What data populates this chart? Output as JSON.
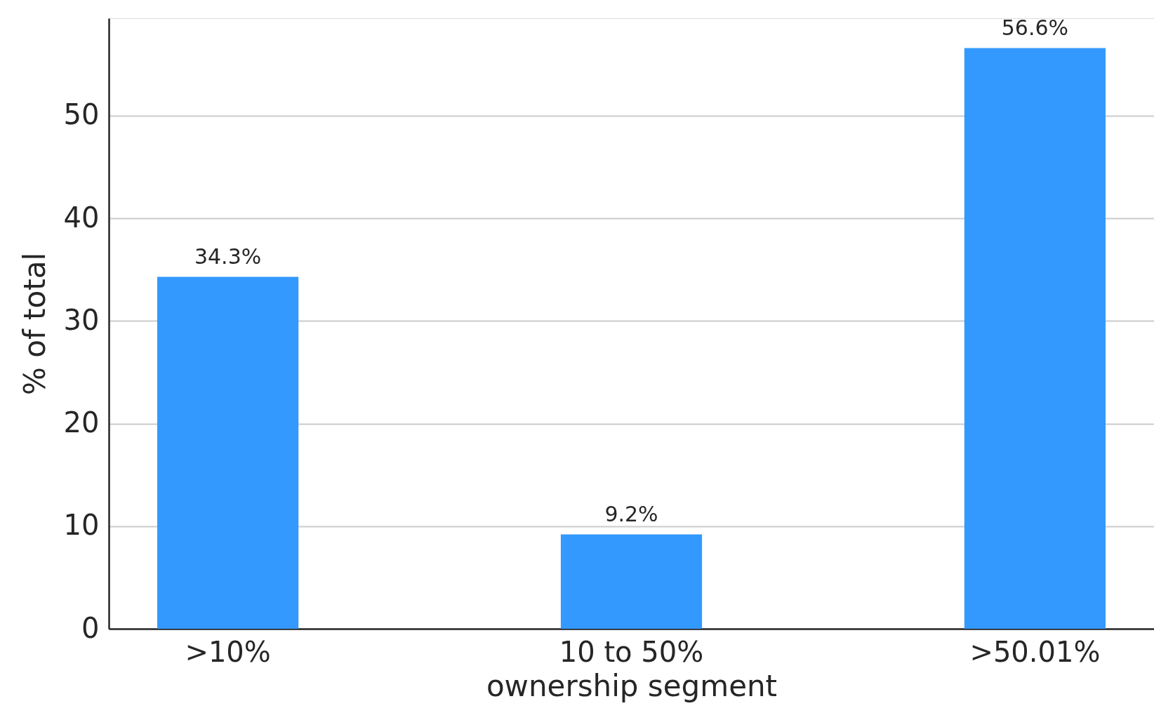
{
  "chart_data": {
    "type": "bar",
    "xlabel": "ownership segment",
    "ylabel": "% of total",
    "categories": [
      ">10%",
      "10 to 50%",
      ">50.01%"
    ],
    "values": [
      34.3,
      9.2,
      56.6
    ],
    "value_labels": [
      "34.3%",
      "9.2%",
      "56.6%"
    ],
    "color": "#3399ff",
    "ylim": [
      0,
      59.5
    ],
    "yticks": [
      0,
      10,
      20,
      30,
      40,
      50
    ],
    "grid": "y"
  }
}
